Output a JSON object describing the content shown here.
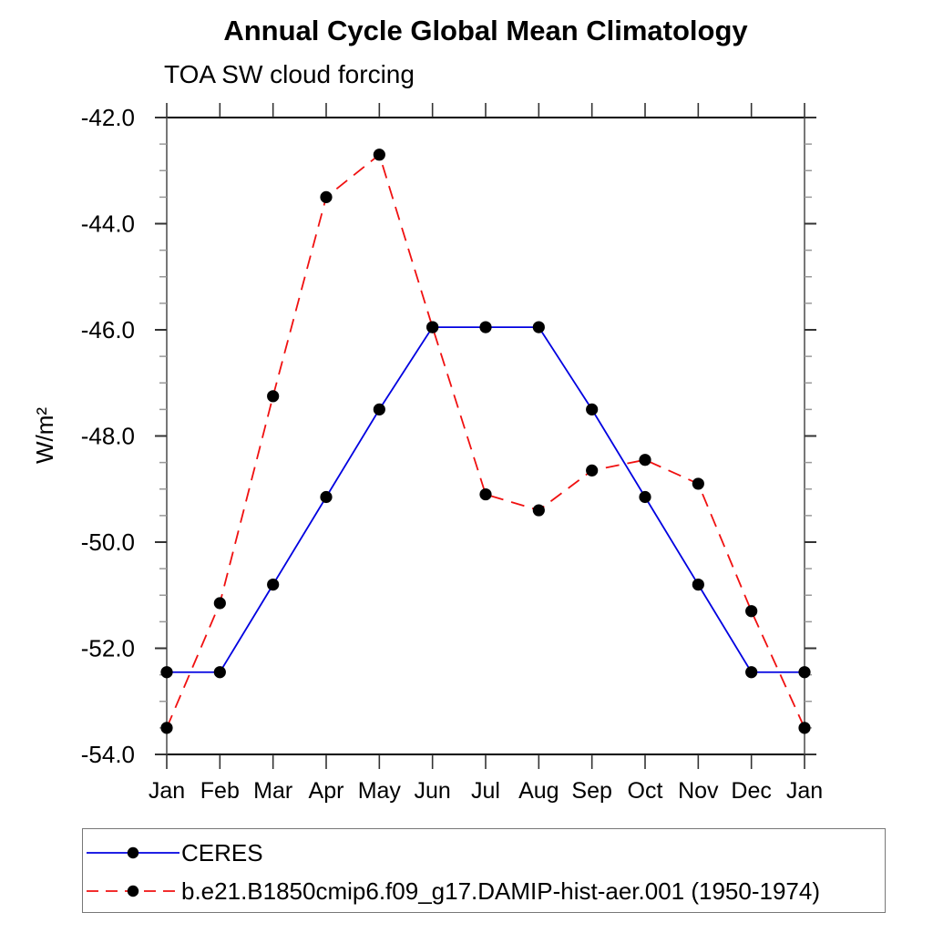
{
  "page": {
    "title": "Annual Cycle Global Mean Climatology",
    "subtitle": "TOA SW cloud forcing"
  },
  "chart_data": {
    "type": "line",
    "title": "Annual Cycle Global Mean Climatology",
    "subtitle": "TOA SW cloud forcing",
    "ylabel": "W/m²",
    "xlabel": "",
    "x_tick_labels": [
      "Jan",
      "Feb",
      "Mar",
      "Apr",
      "May",
      "Jun",
      "Jul",
      "Aug",
      "Sep",
      "Oct",
      "Nov",
      "Dec",
      "Jan"
    ],
    "ylim": [
      -54.0,
      -42.0
    ],
    "y_major_step": 2.0,
    "y_minor_step": 0.5,
    "y_tick_labels": [
      "-42.0",
      "-44.0",
      "-46.0",
      "-48.0",
      "-50.0",
      "-52.0",
      "-54.0"
    ],
    "grid": false,
    "legend_position": "bottom",
    "marker": "filled-circle",
    "marker_color": "#000000",
    "series": [
      {
        "name": "CERES",
        "color": "#0000e0",
        "style": "solid",
        "values": [
          -52.45,
          -52.45,
          -50.8,
          -49.15,
          -47.5,
          -45.95,
          -45.95,
          -45.95,
          -47.5,
          -49.15,
          -50.8,
          -52.45,
          -52.45
        ]
      },
      {
        "name": "b.e21.B1850cmip6.f09_g17.DAMIP-hist-aer.001 (1950-1974)",
        "color": "#f01010",
        "style": "dashed",
        "values": [
          -53.5,
          -51.15,
          -47.25,
          -43.5,
          -42.7,
          -45.95,
          -49.1,
          -49.4,
          -48.65,
          -48.45,
          -48.9,
          -51.3,
          -53.5
        ]
      }
    ]
  }
}
